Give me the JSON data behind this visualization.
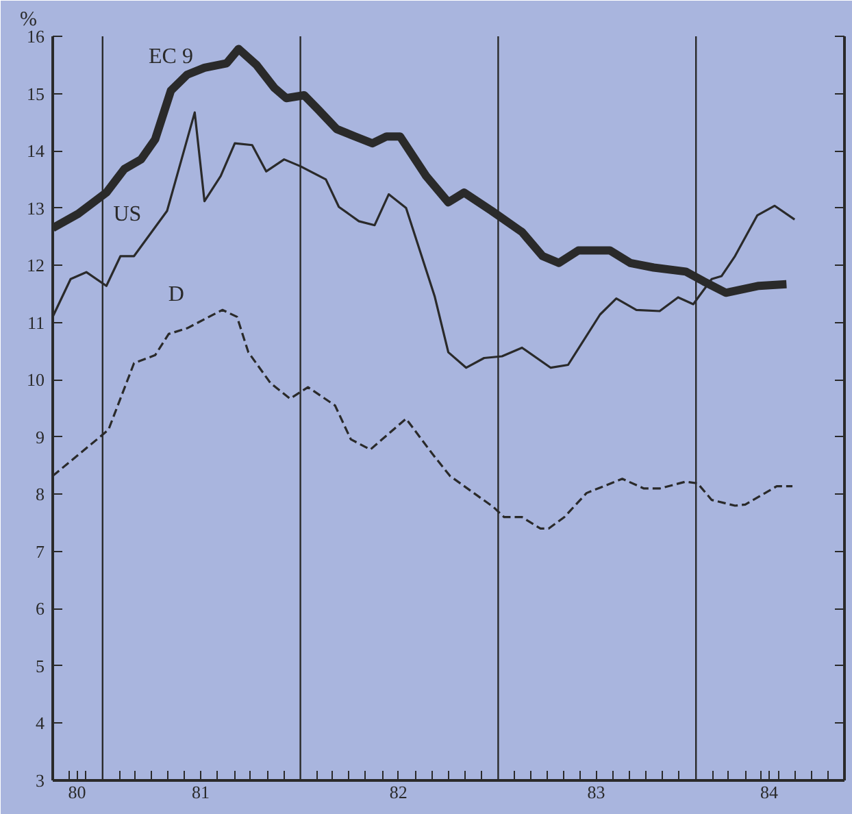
{
  "chart_data": {
    "type": "line",
    "ylabel": "%",
    "xlim": [
      "1980-10-01",
      "1984-10-01"
    ],
    "ylim": [
      3,
      16
    ],
    "yticks": [
      3,
      4,
      5,
      6,
      7,
      8,
      9,
      10,
      11,
      12,
      13,
      14,
      15,
      16
    ],
    "xticks": [
      {
        "value": "1980-11-01",
        "label": null
      },
      {
        "value": "1980-11-15",
        "label": "80"
      },
      {
        "value": "1980-12-01",
        "label": null
      },
      {
        "value": "1981-02-01",
        "label": null
      },
      {
        "value": "1981-03-01",
        "label": null
      },
      {
        "value": "1981-04-01",
        "label": null
      },
      {
        "value": "1981-05-01",
        "label": null
      },
      {
        "value": "1981-06-01",
        "label": null
      },
      {
        "value": "1981-07-01",
        "label": "81"
      },
      {
        "value": "1981-08-01",
        "label": null
      },
      {
        "value": "1981-09-01",
        "label": null
      },
      {
        "value": "1981-10-01",
        "label": null
      },
      {
        "value": "1981-11-01",
        "label": null
      },
      {
        "value": "1981-12-01",
        "label": null
      },
      {
        "value": "1982-02-01",
        "label": null
      },
      {
        "value": "1982-03-01",
        "label": null
      },
      {
        "value": "1982-04-01",
        "label": null
      },
      {
        "value": "1982-05-01",
        "label": null
      },
      {
        "value": "1982-06-01",
        "label": null
      },
      {
        "value": "1982-07-01",
        "label": "82"
      },
      {
        "value": "1982-08-01",
        "label": null
      },
      {
        "value": "1982-09-01",
        "label": null
      },
      {
        "value": "1982-10-01",
        "label": null
      },
      {
        "value": "1982-11-01",
        "label": null
      },
      {
        "value": "1982-12-01",
        "label": null
      },
      {
        "value": "1983-02-01",
        "label": null
      },
      {
        "value": "1983-03-01",
        "label": null
      },
      {
        "value": "1983-04-01",
        "label": null
      },
      {
        "value": "1983-05-01",
        "label": null
      },
      {
        "value": "1983-06-01",
        "label": null
      },
      {
        "value": "1983-07-01",
        "label": "83"
      },
      {
        "value": "1983-08-01",
        "label": null
      },
      {
        "value": "1983-09-01",
        "label": null
      },
      {
        "value": "1983-10-01",
        "label": null
      },
      {
        "value": "1983-11-01",
        "label": null
      },
      {
        "value": "1983-12-01",
        "label": null
      },
      {
        "value": "1984-02-01",
        "label": null
      },
      {
        "value": "1984-03-01",
        "label": null
      },
      {
        "value": "1984-04-01",
        "label": null
      },
      {
        "value": "1984-05-01",
        "label": null
      },
      {
        "value": "1984-05-15",
        "label": "84"
      },
      {
        "value": "1984-06-01",
        "label": null
      },
      {
        "value": "1984-07-01",
        "label": null
      },
      {
        "value": "1984-08-01",
        "label": null
      },
      {
        "value": "1984-09-01",
        "label": null
      }
    ],
    "grid": false,
    "marker": "none",
    "ref_lines": [
      {
        "axis": "x",
        "value": "1981-01-01",
        "color": "#2a2a2a"
      },
      {
        "axis": "x",
        "value": "1982-01-01",
        "color": "#2a2a2a"
      },
      {
        "axis": "x",
        "value": "1983-01-01",
        "color": "#2a2a2a"
      },
      {
        "axis": "x",
        "value": "1984-01-01",
        "color": "#2a2a2a"
      }
    ],
    "series": [
      {
        "name": "EC 9",
        "color": "#2a2a2a",
        "line_style": "solid",
        "x": [
          "1980-10-01",
          "1980-11-17",
          "1981-01-08",
          "1981-02-10",
          "1981-03-13",
          "1981-04-08",
          "1981-05-07",
          "1981-06-06",
          "1981-07-08",
          "1981-08-18",
          "1981-09-09",
          "1981-10-12",
          "1981-11-14",
          "1981-12-06",
          "1982-01-08",
          "1982-02-03",
          "1982-03-09",
          "1982-04-12",
          "1982-05-14",
          "1982-06-09",
          "1982-07-04",
          "1982-08-21",
          "1982-10-01",
          "1982-10-30",
          "1982-12-20",
          "1983-02-14",
          "1983-03-24",
          "1983-04-23",
          "1983-05-29",
          "1983-07-26",
          "1983-09-02",
          "1983-10-15",
          "1983-12-13",
          "1984-01-15",
          "1984-02-25",
          "1984-04-26",
          "1984-06-16"
        ],
        "values": [
          12.65,
          12.9,
          13.27,
          13.68,
          13.85,
          14.2,
          15.05,
          15.33,
          15.45,
          15.53,
          15.78,
          15.5,
          15.1,
          14.92,
          14.97,
          14.72,
          14.38,
          14.25,
          14.13,
          14.25,
          14.25,
          13.56,
          13.1,
          13.27,
          12.95,
          12.58,
          12.16,
          12.04,
          12.26,
          12.26,
          12.04,
          11.96,
          11.89,
          11.72,
          11.52,
          11.64,
          11.67
        ]
      },
      {
        "name": "US",
        "color": "#2a2a2a",
        "line_style": "solid",
        "x": [
          "1980-10-01",
          "1980-11-03",
          "1980-12-02",
          "1981-01-08",
          "1981-02-03",
          "1981-02-28",
          "1981-04-30",
          "1981-06-20",
          "1981-07-08",
          "1981-08-07",
          "1981-09-02",
          "1981-10-04",
          "1981-10-30",
          "1981-12-02",
          "1982-01-01",
          "1982-02-17",
          "1982-03-13",
          "1982-04-19",
          "1982-05-18",
          "1982-06-13",
          "1982-07-15",
          "1982-09-06",
          "1982-10-01",
          "1982-11-03",
          "1982-12-06",
          "1983-01-08",
          "1983-02-14",
          "1983-04-08",
          "1983-05-10",
          "1983-07-08",
          "1983-08-07",
          "1983-09-13",
          "1983-10-26",
          "1983-11-29",
          "1983-12-27",
          "1984-01-30",
          "1984-02-17",
          "1984-03-13",
          "1984-04-23",
          "1984-05-25",
          "1984-07-01"
        ],
        "values": [
          11.1,
          11.76,
          11.88,
          11.64,
          12.16,
          12.16,
          12.95,
          14.67,
          13.12,
          13.56,
          14.13,
          14.1,
          13.64,
          13.85,
          13.73,
          13.5,
          13.02,
          12.77,
          12.7,
          13.24,
          13.0,
          11.45,
          10.48,
          10.21,
          10.38,
          10.41,
          10.56,
          10.21,
          10.26,
          11.14,
          11.42,
          11.22,
          11.2,
          11.44,
          11.32,
          11.76,
          11.81,
          12.16,
          12.87,
          13.04,
          12.8
        ]
      },
      {
        "name": "D",
        "color": "#2a2a2a",
        "line_style": "dashed",
        "x": [
          "1980-10-01",
          "1980-12-27",
          "1981-01-12",
          "1981-02-28",
          "1981-04-08",
          "1981-05-03",
          "1981-06-06",
          "1981-08-10",
          "1981-09-06",
          "1981-09-27",
          "1981-11-07",
          "1981-12-13",
          "1982-01-15",
          "1982-03-06",
          "1982-04-04",
          "1982-05-10",
          "1982-07-15",
          "1982-09-02",
          "1982-10-04",
          "1982-12-24",
          "1983-01-12",
          "1983-02-14",
          "1983-03-20",
          "1983-04-04",
          "1983-05-03",
          "1983-06-13",
          "1983-08-18",
          "1983-09-27",
          "1983-10-26",
          "1983-12-13",
          "1984-01-04",
          "1984-01-30",
          "1984-03-13",
          "1984-04-01",
          "1984-05-29",
          "1984-06-27"
        ],
        "values": [
          8.32,
          9.0,
          9.13,
          10.29,
          10.43,
          10.8,
          10.9,
          11.22,
          11.1,
          10.48,
          9.94,
          9.67,
          9.87,
          9.55,
          8.96,
          8.78,
          9.32,
          8.7,
          8.32,
          7.77,
          7.6,
          7.6,
          7.4,
          7.4,
          7.6,
          8.02,
          8.27,
          8.1,
          8.1,
          8.22,
          8.19,
          7.9,
          7.8,
          7.82,
          8.14,
          8.14
        ]
      }
    ]
  }
}
